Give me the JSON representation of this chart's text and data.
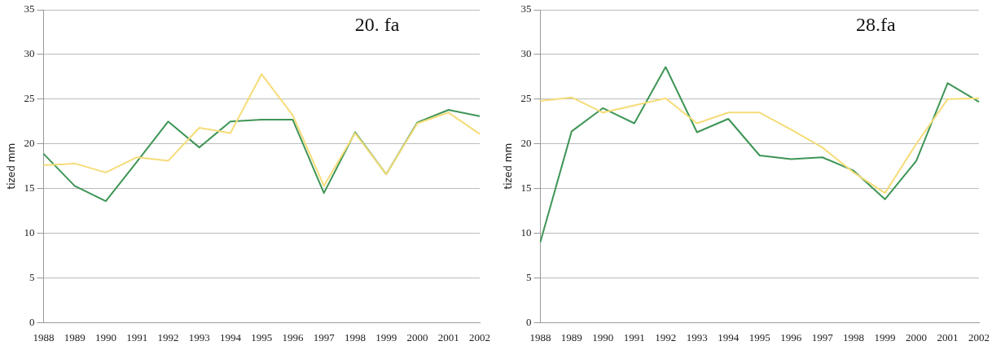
{
  "chart_data": [
    {
      "type": "line",
      "title": "20. fa",
      "ylabel": "tized mm",
      "categories": [
        "1988",
        "1989",
        "1990",
        "1991",
        "1992",
        "1993",
        "1994",
        "1995",
        "1996",
        "1997",
        "1998",
        "1999",
        "2000",
        "2001",
        "2002"
      ],
      "series": [
        {
          "color": "#f5dc78",
          "values": [
            17.6,
            17.8,
            16.8,
            18.5,
            18.1,
            21.8,
            21.2,
            27.8,
            23.2,
            15.3,
            21.2,
            16.6,
            22.3,
            23.5,
            21.1
          ]
        },
        {
          "color": "#3e9556",
          "values": [
            18.9,
            15.3,
            13.6,
            18,
            22.5,
            19.6,
            22.5,
            22.7,
            22.7,
            14.5,
            21.3,
            16.6,
            22.4,
            23.8,
            23.1
          ]
        }
      ],
      "ylim": [
        0,
        35
      ],
      "yticks": [
        0,
        5,
        10,
        15,
        20,
        25,
        30,
        35
      ],
      "grid": "y",
      "legend": false,
      "marker": "none"
    },
    {
      "type": "line",
      "title": "28.fa",
      "ylabel": "tized mm",
      "categories": [
        "1988",
        "1989",
        "1990",
        "1991",
        "1992",
        "1993",
        "1994",
        "1995",
        "1996",
        "1997",
        "1998",
        "1999",
        "2000",
        "2001",
        "2002"
      ],
      "series": [
        {
          "color": "#f5dc78",
          "values": [
            24.8,
            25.2,
            23.5,
            24.3,
            25.1,
            22.3,
            23.5,
            23.5,
            21.6,
            19.6,
            16.8,
            14.5,
            20.0,
            25.0,
            25.1
          ]
        },
        {
          "color": "#3e9556",
          "values": [
            9.0,
            21.4,
            24.0,
            22.3,
            28.6,
            21.3,
            22.8,
            18.7,
            18.3,
            18.5,
            17.0,
            13.8,
            18.1,
            26.8,
            24.7
          ]
        }
      ],
      "ylim": [
        0,
        35
      ],
      "yticks": [
        0,
        5,
        10,
        15,
        20,
        25,
        30,
        35
      ],
      "grid": "y",
      "legend": false,
      "marker": "none"
    }
  ]
}
